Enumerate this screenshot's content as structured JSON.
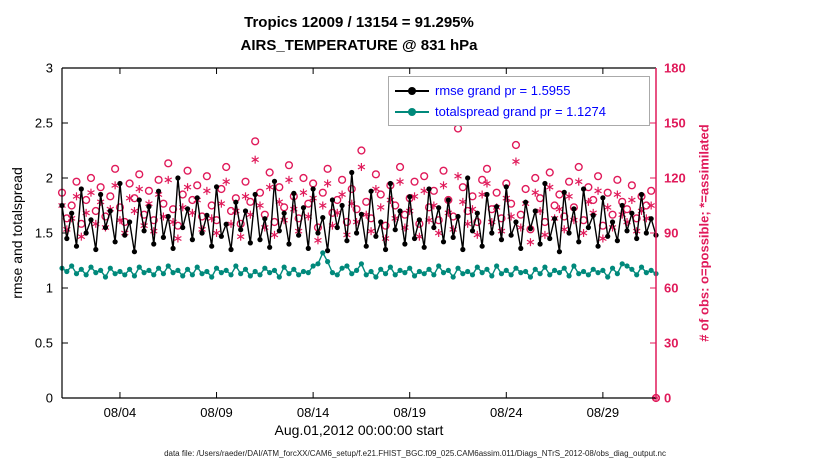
{
  "colors": {
    "legend_text": "#0000ff",
    "axis_black": "#000000"
  },
  "caption": {
    "text": "data file: /Users/raeder/DAI/ATM_forcXX/CAM6_setup/f.e21.FHIST_BGC.f09_025.CAM6assim.011/Diags_NTrS_2012-08/obs_diag_output.nc"
  },
  "chart_data": {
    "type": "line",
    "title": "Tropics 12009 / 13154 = 91.295%",
    "subtitle": "AIRS_TEMPERATURE @ 831 hPa",
    "xlabel": "Aug.01,2012 00:00:00 start",
    "ylabel_left": "rmse and totalspread",
    "ylabel_right": "# of obs: o=possible; *=assimilated",
    "obs_color": "#e01a5a",
    "grid": false,
    "legend_position": "top-center-inside",
    "x_start_day": 0,
    "x_end_day": 30.75,
    "x_step_days": 0.25,
    "x_ticks": [
      {
        "day": 3,
        "label": "08/04"
      },
      {
        "day": 8,
        "label": "08/09"
      },
      {
        "day": 13,
        "label": "08/14"
      },
      {
        "day": 18,
        "label": "08/19"
      },
      {
        "day": 23,
        "label": "08/24"
      },
      {
        "day": 28,
        "label": "08/29"
      }
    ],
    "ylim_left": [
      0,
      3
    ],
    "yticks_left": [
      0,
      0.5,
      1,
      1.5,
      2,
      2.5,
      3
    ],
    "ylim_right": [
      0,
      180
    ],
    "yticks_right": [
      0,
      30,
      60,
      90,
      120,
      150,
      180
    ],
    "series": [
      {
        "name": "rmse grand pr = 1.5955",
        "color": "#000000",
        "type": "line-marker",
        "axis": "left",
        "values": [
          1.75,
          1.45,
          1.68,
          1.38,
          1.9,
          1.5,
          1.62,
          1.35,
          1.85,
          1.55,
          1.7,
          1.42,
          1.95,
          1.48,
          1.6,
          1.33,
          1.8,
          1.52,
          1.74,
          1.4,
          1.88,
          1.46,
          1.65,
          1.36,
          2.0,
          1.55,
          1.72,
          1.44,
          1.82,
          1.5,
          1.66,
          1.38,
          1.92,
          1.47,
          1.58,
          1.35,
          1.78,
          1.53,
          1.7,
          1.41,
          1.85,
          1.44,
          1.63,
          1.37,
          1.97,
          1.52,
          1.68,
          1.4,
          1.86,
          1.48,
          1.73,
          1.36,
          1.9,
          1.5,
          1.64,
          1.34,
          1.8,
          1.55,
          1.75,
          1.43,
          2.05,
          1.5,
          1.67,
          1.38,
          1.88,
          1.47,
          1.6,
          1.35,
          1.95,
          1.53,
          1.7,
          1.4,
          1.83,
          1.45,
          1.62,
          1.37,
          1.9,
          1.55,
          1.73,
          1.42,
          1.8,
          1.46,
          1.65,
          1.35,
          2.0,
          1.52,
          1.68,
          1.38,
          1.85,
          1.5,
          1.74,
          1.44,
          1.92,
          1.48,
          1.6,
          1.36,
          1.78,
          1.54,
          1.7,
          1.4,
          1.95,
          1.45,
          1.63,
          1.33,
          1.87,
          1.5,
          1.72,
          1.42,
          1.9,
          1.55,
          1.66,
          1.38,
          1.82,
          1.47,
          1.6,
          1.43,
          1.75,
          1.52,
          1.68,
          1.45,
          1.85,
          1.5,
          1.63,
          1.48
        ]
      },
      {
        "name": "totalspread grand pr = 1.1274",
        "color": "#00897b",
        "type": "line-marker",
        "axis": "left",
        "values": [
          1.18,
          1.15,
          1.2,
          1.13,
          1.17,
          1.12,
          1.19,
          1.14,
          1.16,
          1.1,
          1.18,
          1.13,
          1.15,
          1.12,
          1.17,
          1.11,
          1.19,
          1.14,
          1.16,
          1.12,
          1.18,
          1.13,
          1.2,
          1.14,
          1.16,
          1.11,
          1.17,
          1.12,
          1.19,
          1.13,
          1.15,
          1.1,
          1.18,
          1.14,
          1.16,
          1.12,
          1.2,
          1.13,
          1.17,
          1.11,
          1.15,
          1.12,
          1.18,
          1.14,
          1.16,
          1.1,
          1.19,
          1.13,
          1.17,
          1.12,
          1.15,
          1.14,
          1.2,
          1.22,
          1.32,
          1.24,
          1.14,
          1.12,
          1.18,
          1.2,
          1.13,
          1.16,
          1.22,
          1.12,
          1.15,
          1.1,
          1.17,
          1.13,
          1.19,
          1.12,
          1.16,
          1.14,
          1.18,
          1.11,
          1.15,
          1.13,
          1.17,
          1.12,
          1.2,
          1.14,
          1.16,
          1.1,
          1.18,
          1.13,
          1.15,
          1.12,
          1.19,
          1.14,
          1.17,
          1.11,
          1.2,
          1.13,
          1.16,
          1.12,
          1.18,
          1.14,
          1.15,
          1.1,
          1.17,
          1.13,
          1.19,
          1.12,
          1.16,
          1.14,
          1.18,
          1.11,
          1.2,
          1.13,
          1.15,
          1.12,
          1.17,
          1.14,
          1.16,
          1.1,
          1.18,
          1.13,
          1.22,
          1.2,
          1.17,
          1.12,
          1.19,
          1.14,
          1.16,
          1.13
        ]
      },
      {
        "name": "possible",
        "color": "#e01a5a",
        "type": "scatter-circle",
        "axis": "right",
        "values": [
          112,
          98,
          105,
          118,
          95,
          108,
          120,
          102,
          115,
          99,
          110,
          125,
          104,
          96,
          117,
          109,
          122,
          100,
          113,
          97,
          119,
          106,
          128,
          103,
          94,
          111,
          124,
          108,
          116,
          99,
          121,
          105,
          97,
          114,
          126,
          102,
          109,
          95,
          118,
          107,
          140,
          112,
          100,
          123,
          96,
          115,
          104,
          127,
          110,
          98,
          120,
          106,
          117,
          93,
          112,
          125,
          101,
          108,
          119,
          96,
          114,
          103,
          135,
          107,
          98,
          122,
          111,
          94,
          116,
          105,
          126,
          100,
          109,
          118,
          95,
          121,
          104,
          113,
          97,
          124,
          108,
          99,
          147,
          115,
          102,
          110,
          96,
          119,
          125,
          103,
          112,
          98,
          117,
          106,
          138,
          100,
          114,
          92,
          120,
          109,
          96,
          123,
          105,
          111,
          99,
          118,
          104,
          126,
          97,
          115,
          108,
          121,
          94,
          112,
          100,
          119,
          107,
          103,
          116,
          98,
          110,
          105,
          113,
          0
        ]
      },
      {
        "name": "assimilated",
        "color": "#e01a5a",
        "type": "scatter-asterisk",
        "axis": "right",
        "values": [
          105,
          92,
          98,
          110,
          88,
          101,
          112,
          95,
          107,
          93,
          103,
          116,
          97,
          90,
          109,
          102,
          114,
          94,
          106,
          91,
          111,
          99,
          119,
          96,
          87,
          104,
          115,
          101,
          108,
          92,
          113,
          98,
          90,
          106,
          118,
          95,
          102,
          88,
          110,
          100,
          130,
          105,
          93,
          115,
          89,
          107,
          97,
          119,
          103,
          91,
          112,
          99,
          109,
          86,
          105,
          117,
          94,
          101,
          111,
          89,
          106,
          96,
          126,
          100,
          91,
          114,
          104,
          87,
          108,
          98,
          118,
          93,
          102,
          110,
          88,
          113,
          97,
          105,
          90,
          116,
          101,
          92,
          121,
          107,
          95,
          103,
          89,
          111,
          117,
          96,
          104,
          91,
          109,
          99,
          129,
          93,
          106,
          85,
          112,
          102,
          89,
          115,
          98,
          103,
          92,
          110,
          97,
          118,
          90,
          107,
          101,
          113,
          87,
          104,
          93,
          111,
          100,
          96,
          108,
          91,
          102,
          98,
          105,
          0
        ]
      }
    ]
  }
}
